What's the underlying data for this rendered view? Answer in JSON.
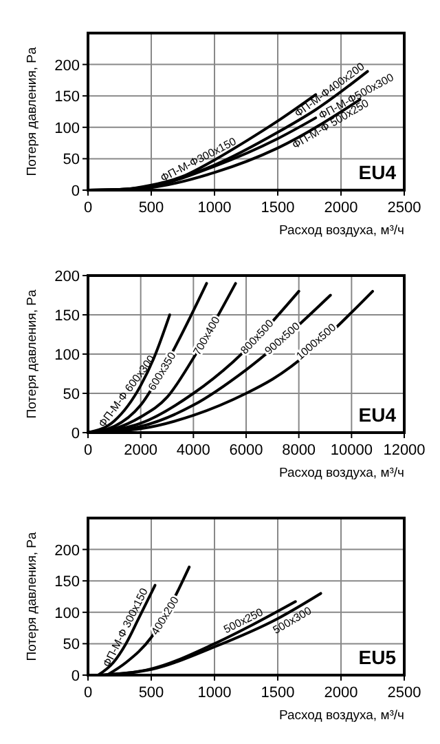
{
  "chart_data": [
    {
      "type": "line",
      "xlabel": "Расход воздуха, м³/ч",
      "ylabel": "Потеря давления, Pa",
      "xlim": [
        0,
        2500
      ],
      "xticks": [
        0,
        500,
        1000,
        1500,
        2000,
        2500
      ],
      "ylim": [
        0,
        250
      ],
      "yticks": [
        0,
        50,
        100,
        150,
        200
      ],
      "grid": true,
      "legend": false,
      "annotations": [
        "EU4"
      ],
      "series": [
        {
          "name": "ФП-М-Ф300x150",
          "color": "#000000",
          "x": [
            0,
            250,
            500,
            750,
            1000,
            1250,
            1500,
            1800
          ],
          "values": [
            0,
            1,
            8,
            22,
            48,
            78,
            110,
            152
          ]
        },
        {
          "name": "ФП-М-Ф400x200",
          "color": "#000000",
          "x": [
            0,
            250,
            500,
            1000,
            1500,
            1800,
            2210
          ],
          "values": [
            0,
            1,
            7,
            40,
            92,
            128,
            189
          ]
        },
        {
          "name": "ФП-М-Ф500x300",
          "color": "#000000",
          "x": [
            0,
            250,
            500,
            1000,
            1500,
            1800
          ],
          "values": [
            0,
            1,
            6,
            38,
            82,
            115
          ]
        },
        {
          "name": "ФП-М-Ф 500x250",
          "color": "#000000",
          "x": [
            0,
            250,
            500,
            1000,
            1500,
            2150
          ],
          "values": [
            0,
            0,
            4,
            28,
            67,
            144
          ]
        }
      ]
    },
    {
      "type": "line",
      "xlabel": "Расход воздуха, м³/ч",
      "ylabel": "Потеря давления, Pa",
      "xlim": [
        0,
        12000
      ],
      "xticks": [
        0,
        2000,
        4000,
        6000,
        8000,
        10000,
        12000
      ],
      "ylim": [
        0,
        200
      ],
      "yticks": [
        0,
        50,
        100,
        150,
        200
      ],
      "grid": true,
      "legend": false,
      "annotations": [
        "EU4"
      ],
      "series": [
        {
          "name": "ФП-М-Ф 600x300",
          "color": "#000000",
          "x": [
            0,
            1000,
            2000,
            2500,
            3100
          ],
          "values": [
            0,
            15,
            60,
            95,
            150
          ]
        },
        {
          "name": "600x350",
          "color": "#000000",
          "x": [
            0,
            1000,
            2000,
            3000,
            4500
          ],
          "values": [
            0,
            8,
            35,
            90,
            190
          ]
        },
        {
          "name": "700x400",
          "color": "#000000",
          "x": [
            0,
            1000,
            2000,
            3000,
            4000,
            5600
          ],
          "values": [
            0,
            5,
            20,
            45,
            95,
            190
          ]
        },
        {
          "name": "800x500",
          "color": "#000000",
          "x": [
            0,
            2000,
            4000,
            5500,
            8000
          ],
          "values": [
            0,
            12,
            50,
            90,
            180
          ]
        },
        {
          "name": "900x500",
          "color": "#000000",
          "x": [
            0,
            2000,
            4000,
            6000,
            9200
          ],
          "values": [
            0,
            8,
            35,
            80,
            175
          ]
        },
        {
          "name": "1000x500",
          "color": "#000000",
          "x": [
            0,
            2000,
            4000,
            6000,
            7000,
            10800
          ],
          "values": [
            0,
            5,
            22,
            50,
            68,
            180
          ]
        }
      ]
    },
    {
      "type": "line",
      "xlabel": "Расход воздуха, м³/ч",
      "ylabel": "Потеря давления, Pa",
      "xlim": [
        0,
        2500
      ],
      "xticks": [
        0,
        500,
        1000,
        1500,
        2000,
        2500
      ],
      "ylim": [
        0,
        250
      ],
      "yticks": [
        0,
        50,
        100,
        150,
        200
      ],
      "grid": true,
      "legend": false,
      "annotations": [
        "EU5"
      ],
      "series": [
        {
          "name": "ФП-М-Ф 300x150",
          "color": "#000000",
          "x": [
            80,
            200,
            300,
            400,
            530
          ],
          "values": [
            0,
            20,
            50,
            90,
            143
          ]
        },
        {
          "name": "400x200",
          "color": "#000000",
          "x": [
            150,
            300,
            500,
            650,
            800
          ],
          "values": [
            0,
            20,
            60,
            110,
            172
          ]
        },
        {
          "name": "500x250",
          "color": "#000000",
          "x": [
            100,
            500,
            1000,
            1300,
            1640
          ],
          "values": [
            0,
            10,
            50,
            80,
            117
          ]
        },
        {
          "name": "500x300",
          "color": "#000000",
          "x": [
            100,
            500,
            1000,
            1500,
            1840
          ],
          "values": [
            0,
            9,
            45,
            90,
            130
          ]
        }
      ]
    }
  ]
}
